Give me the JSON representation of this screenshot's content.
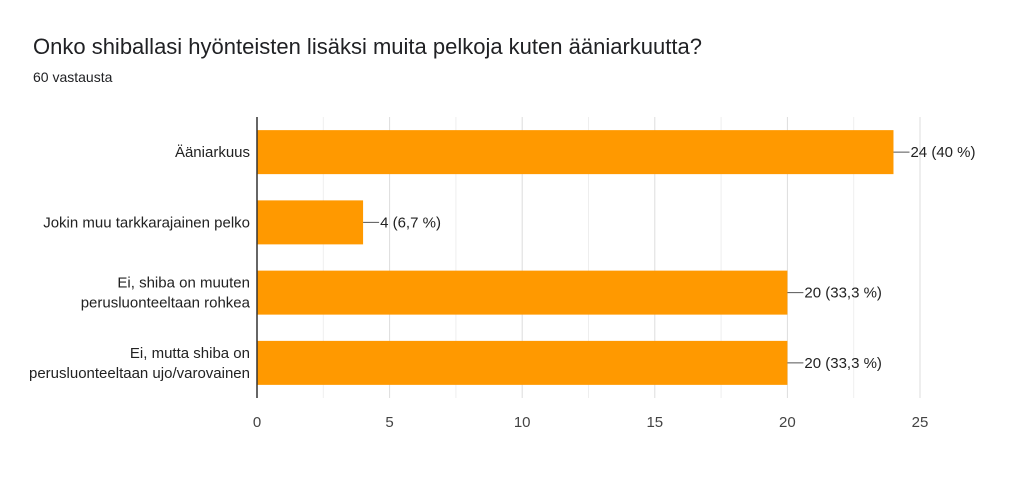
{
  "header": {
    "title": "Onko shiballasi hyönteisten lisäksi muita pelkoja kuten ääniarkuutta?",
    "subtitle": "60 vastausta"
  },
  "chart_data": {
    "type": "bar",
    "orientation": "horizontal",
    "categories": [
      [
        "Ääniarkuus"
      ],
      [
        "Jokin muu tarkkarajainen pelko"
      ],
      [
        "Ei, shiba on muuten",
        "perusluonteeltaan rohkea"
      ],
      [
        "Ei, mutta shiba on",
        "perusluonteeltaan ujo/varovainen"
      ]
    ],
    "values": [
      24,
      4,
      20,
      20
    ],
    "data_labels": [
      "24 (40 %)",
      "4 (6,7 %)",
      "20 (33,3 %)",
      "20 (33,3 %)"
    ],
    "xlim": [
      0,
      25
    ],
    "xticks": [
      "0",
      "5",
      "10",
      "15",
      "20",
      "25"
    ],
    "grid": true,
    "bar_color": "#ff9900"
  }
}
